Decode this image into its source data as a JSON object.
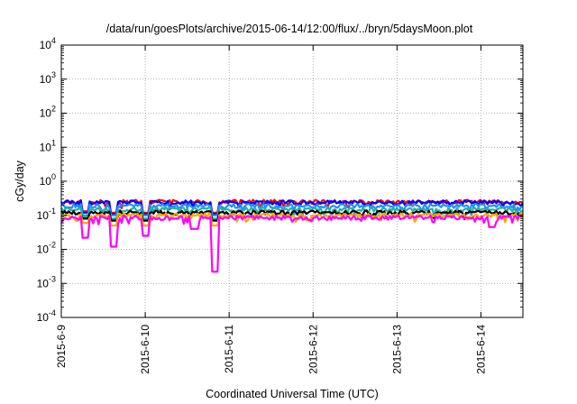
{
  "chart_data": {
    "type": "line",
    "title": "/data/run/goesPlots/archive/2015-06-14/12:00/flux/../bryn/5daysMoon.plot",
    "xlabel": "Coordinated Universal Time (UTC)",
    "ylabel": "cGy/day",
    "yscale": "log",
    "ylim": [
      0.0001,
      10000
    ],
    "xlim": [
      "2015-06-09",
      "2015-06-14T12:00"
    ],
    "grid": true,
    "y_ticks": [
      {
        "base": "10",
        "exp": "-4"
      },
      {
        "base": "10",
        "exp": "-3"
      },
      {
        "base": "10",
        "exp": "-2"
      },
      {
        "base": "10",
        "exp": "-1"
      },
      {
        "base": "10",
        "exp": "0"
      },
      {
        "base": "10",
        "exp": "1"
      },
      {
        "base": "10",
        "exp": "2"
      },
      {
        "base": "10",
        "exp": "3"
      },
      {
        "base": "10",
        "exp": "4"
      }
    ],
    "x_ticks": [
      "2015-6-9",
      "2015-6-10",
      "2015-6-11",
      "2015-6-12",
      "2015-6-13",
      "2015-6-14"
    ],
    "series": [
      {
        "color": "#ff0000",
        "baseline": 0.25,
        "dips": [
          {
            "x": "2015-06-09T07:00",
            "y": 0.13
          },
          {
            "x": "2015-06-09T15:00",
            "y": 0.12
          },
          {
            "x": "2015-06-10T00:00",
            "y": 0.12
          },
          {
            "x": "2015-06-10T20:00",
            "y": 0.12
          }
        ]
      },
      {
        "color": "#0000ff",
        "baseline": 0.24,
        "dips": [
          {
            "x": "2015-06-09T07:00",
            "y": 0.12
          },
          {
            "x": "2015-06-09T15:00",
            "y": 0.11
          },
          {
            "x": "2015-06-10T00:00",
            "y": 0.11
          },
          {
            "x": "2015-06-10T20:00",
            "y": 0.11
          }
        ]
      },
      {
        "color": "#1e90ff",
        "baseline": 0.19,
        "dips": [
          {
            "x": "2015-06-09T07:00",
            "y": 0.1
          },
          {
            "x": "2015-06-09T15:00",
            "y": 0.1
          },
          {
            "x": "2015-06-10T00:00",
            "y": 0.1
          },
          {
            "x": "2015-06-10T20:00",
            "y": 0.1
          }
        ]
      },
      {
        "color": "#20b2aa",
        "baseline": 0.15,
        "dips": [
          {
            "x": "2015-06-09T07:00",
            "y": 0.09
          },
          {
            "x": "2015-06-09T15:00",
            "y": 0.08
          },
          {
            "x": "2015-06-10T00:00",
            "y": 0.08
          },
          {
            "x": "2015-06-10T20:00",
            "y": 0.08
          }
        ]
      },
      {
        "color": "#000000",
        "baseline": 0.12,
        "dips": [
          {
            "x": "2015-06-09T07:00",
            "y": 0.08
          },
          {
            "x": "2015-06-09T15:00",
            "y": 0.07
          },
          {
            "x": "2015-06-10T00:00",
            "y": 0.07
          },
          {
            "x": "2015-06-10T20:00",
            "y": 0.07
          }
        ]
      },
      {
        "color": "#ffa500",
        "baseline": 0.1,
        "dips": [
          {
            "x": "2015-06-09T07:00",
            "y": 0.06
          },
          {
            "x": "2015-06-09T15:00",
            "y": 0.05
          },
          {
            "x": "2015-06-10T00:00",
            "y": 0.05
          },
          {
            "x": "2015-06-10T20:00",
            "y": 0.05
          }
        ]
      },
      {
        "color": "#ff00ff",
        "baseline": 0.085,
        "dips": [
          {
            "x": "2015-06-09T07:00",
            "y": 0.022
          },
          {
            "x": "2015-06-09T15:00",
            "y": 0.012
          },
          {
            "x": "2015-06-10T00:00",
            "y": 0.025
          },
          {
            "x": "2015-06-10T14:00",
            "y": 0.04
          },
          {
            "x": "2015-06-10T20:00",
            "y": 0.0022
          },
          {
            "x": "2015-06-14T03:00",
            "y": 0.045
          }
        ]
      }
    ]
  }
}
